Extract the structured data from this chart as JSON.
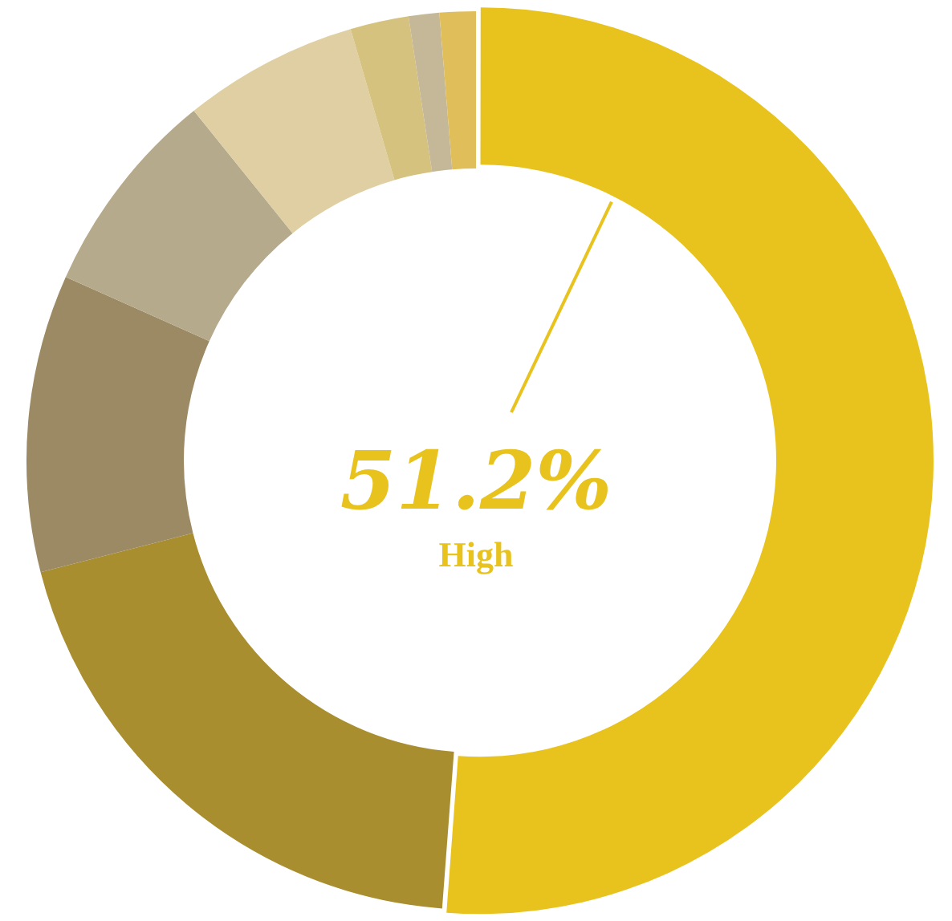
{
  "chart_data": {
    "type": "donut",
    "categories": [
      "High",
      null,
      null,
      null,
      null,
      null,
      null,
      null
    ],
    "values": [
      51.2,
      19.8,
      10.7,
      7.5,
      6.3,
      2.1,
      1.1,
      1.3
    ],
    "colors": [
      "#e8c31e",
      "#a98e30",
      "#9c8a64",
      "#b6aa8c",
      "#dfcfa3",
      "#d6c27f",
      "#c4b898",
      "#e0bf5a"
    ],
    "value_labels": [
      "51.2%",
      null,
      null,
      null,
      null,
      null,
      null,
      null
    ],
    "needle": "High",
    "legend": false
  }
}
